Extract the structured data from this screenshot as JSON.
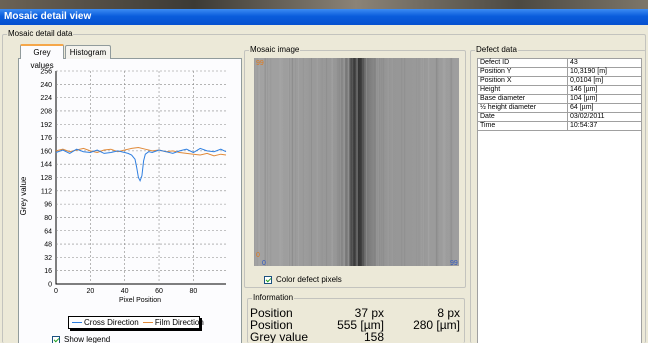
{
  "window": {
    "title": "Mosaic detail view"
  },
  "groups": {
    "outer": "Mosaic detail data",
    "mosaic": "Mosaic image",
    "defect": "Defect data",
    "info": "Information"
  },
  "tabs": [
    {
      "label": "Grey values",
      "active": true
    },
    {
      "label": "Histogram",
      "active": false
    }
  ],
  "chart_data": {
    "type": "line",
    "title": "",
    "xlabel": "Pixel Position",
    "ylabel": "Grey value",
    "xlim": [
      0,
      99
    ],
    "ylim": [
      0,
      256
    ],
    "x_ticks": [
      0,
      20,
      40,
      60,
      80
    ],
    "y_ticks": [
      0,
      16,
      32,
      48,
      64,
      80,
      96,
      112,
      128,
      144,
      160,
      176,
      192,
      208,
      224,
      240,
      256
    ],
    "grid": true,
    "legend_position": "bottom",
    "series": [
      {
        "name": "Cross Direction",
        "color": "#2f7fe0",
        "x": [
          0,
          4,
          8,
          12,
          16,
          20,
          24,
          28,
          32,
          36,
          40,
          42,
          44,
          46,
          47,
          48,
          49,
          50,
          51,
          52,
          54,
          56,
          60,
          64,
          68,
          72,
          76,
          80,
          84,
          88,
          92,
          96,
          99
        ],
        "y": [
          158,
          161,
          157,
          162,
          159,
          158,
          161,
          157,
          158,
          160,
          158,
          157,
          155,
          150,
          140,
          128,
          124,
          130,
          148,
          156,
          159,
          158,
          161,
          159,
          157,
          160,
          162,
          158,
          163,
          160,
          159,
          162,
          159
        ]
      },
      {
        "name": "Film Direction",
        "color": "#e08a3a",
        "x": [
          0,
          4,
          8,
          12,
          16,
          20,
          24,
          28,
          32,
          36,
          40,
          44,
          48,
          52,
          56,
          60,
          64,
          68,
          72,
          76,
          80,
          84,
          88,
          92,
          96,
          99
        ],
        "y": [
          160,
          162,
          159,
          161,
          163,
          160,
          158,
          161,
          162,
          159,
          161,
          163,
          164,
          162,
          160,
          161,
          159,
          160,
          158,
          157,
          156,
          155,
          157,
          154,
          156,
          155
        ]
      }
    ]
  },
  "show_legend_label": "Show legend",
  "mosaic": {
    "tick_top_left": "99",
    "tick_bottom_left": "0",
    "tick_x_left": "0",
    "tick_x_right": "99",
    "color_defect_label": "Color defect pixels",
    "color_defect_checked": true
  },
  "information": {
    "rows": [
      {
        "label": "Position",
        "v1": "37 px",
        "v2": "8 px"
      },
      {
        "label": "Position",
        "v1": "555 [µm]",
        "v2": "280 [µm]"
      },
      {
        "label": "Grey value",
        "v1": "158",
        "v2": ""
      }
    ]
  },
  "defect_data": [
    {
      "key": "Defect ID",
      "value": "43"
    },
    {
      "key": "Position Y",
      "value": "10,3190 [m]"
    },
    {
      "key": "Position X",
      "value": "0,0104 [m]"
    },
    {
      "key": "Height",
      "value": "146 [µm]"
    },
    {
      "key": "Base diameter",
      "value": "104 [µm]"
    },
    {
      "key": "½ height diameter",
      "value": "64 [µm]"
    },
    {
      "key": "Date",
      "value": "03/02/2011"
    },
    {
      "key": "Time",
      "value": "10:54:37"
    }
  ]
}
